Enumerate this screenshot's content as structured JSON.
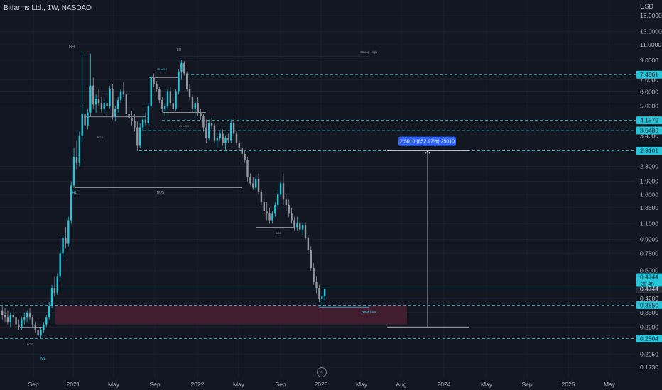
{
  "header": {
    "symbol": "Bitfarms Ltd., 1W, NASDAQ",
    "currency": "USD"
  },
  "colors": {
    "background": "#131722",
    "up": "#26c6da",
    "down": "#9598a1",
    "dashed_level": "#26c6da",
    "label_bg": "#26c6da",
    "zone": "#4a1f33",
    "measure_label": "#2962ff",
    "annotation": "#b2b5be"
  },
  "chart_data": {
    "type": "candlestick",
    "title": "Bitfarms Ltd., 1W, NASDAQ",
    "y_scale": "log",
    "ylim": [
      0.16,
      18.0
    ],
    "y_ticks": [
      "16.0000",
      "13.0000",
      "11.0000",
      "9.0000",
      "7.0000",
      "6.0000",
      "5.0000",
      "2.3000",
      "1.9000",
      "1.6000",
      "1.3500",
      "1.1000",
      "0.9000",
      "0.7500",
      "0.6000",
      "0.4200",
      "0.3500",
      "0.2900",
      "0.2050",
      "0.1730"
    ],
    "x_ticks": [
      "Sep",
      "2021",
      "May",
      "Sep",
      "2022",
      "May",
      "Sep",
      "2023",
      "May",
      "Aug",
      "2024",
      "May",
      "Sep",
      "2025",
      "May"
    ],
    "price_labels": [
      {
        "text": "7.4861",
        "value": 7.4861
      },
      {
        "text": "4.1579",
        "value": 4.1579
      },
      {
        "text": "3.6486",
        "value": 3.6486
      },
      {
        "text": "2.8101",
        "value": 2.8101
      },
      {
        "text": "0.4744",
        "value": 0.4744
      },
      {
        "text": "0.3850",
        "value": 0.385
      },
      {
        "text": "0.2504",
        "value": 0.2504
      }
    ],
    "current_price": {
      "price": "0.4744",
      "countdown": "2d 4h"
    },
    "partially_covered_tick": "3.4000",
    "horizontal_levels": [
      7.4861,
      4.1579,
      3.6486,
      2.8101,
      0.385,
      0.2504
    ],
    "annotations": [
      "HH",
      "LH",
      "ML",
      "HL",
      "BOS",
      "BOS",
      "BOS",
      "BOS",
      "CHoCH",
      "CHoCH",
      "Strong High",
      "Weak Low"
    ],
    "measure_label": "2.5010 (852.97%) 25010",
    "demand_zone": {
      "from_price": 0.3,
      "to_price": 0.385
    },
    "candles": [
      [
        0.36,
        0.38,
        0.32,
        0.34
      ],
      [
        0.34,
        0.37,
        0.31,
        0.33
      ],
      [
        0.33,
        0.36,
        0.3,
        0.31
      ],
      [
        0.31,
        0.35,
        0.29,
        0.34
      ],
      [
        0.34,
        0.37,
        0.32,
        0.33
      ],
      [
        0.33,
        0.34,
        0.29,
        0.3
      ],
      [
        0.3,
        0.32,
        0.28,
        0.29
      ],
      [
        0.29,
        0.33,
        0.28,
        0.32
      ],
      [
        0.32,
        0.35,
        0.3,
        0.33
      ],
      [
        0.33,
        0.36,
        0.31,
        0.35
      ],
      [
        0.35,
        0.37,
        0.32,
        0.33
      ],
      [
        0.33,
        0.34,
        0.29,
        0.3
      ],
      [
        0.3,
        0.31,
        0.27,
        0.28
      ],
      [
        0.28,
        0.29,
        0.255,
        0.26
      ],
      [
        0.26,
        0.29,
        0.25,
        0.28
      ],
      [
        0.28,
        0.31,
        0.27,
        0.3
      ],
      [
        0.3,
        0.34,
        0.29,
        0.33
      ],
      [
        0.33,
        0.4,
        0.32,
        0.38
      ],
      [
        0.38,
        0.5,
        0.37,
        0.48
      ],
      [
        0.48,
        0.56,
        0.43,
        0.45
      ],
      [
        0.45,
        0.58,
        0.44,
        0.56
      ],
      [
        0.56,
        0.8,
        0.53,
        0.75
      ],
      [
        0.75,
        0.95,
        0.7,
        0.92
      ],
      [
        0.92,
        1.05,
        0.8,
        0.85
      ],
      [
        0.85,
        1.2,
        0.82,
        1.15
      ],
      [
        1.15,
        1.9,
        1.1,
        1.8
      ],
      [
        1.8,
        2.9,
        1.75,
        2.6
      ],
      [
        2.6,
        3.2,
        2.2,
        2.4
      ],
      [
        2.4,
        3.6,
        2.3,
        3.4
      ],
      [
        3.4,
        10.0,
        3.2,
        4.5
      ],
      [
        4.5,
        5.2,
        3.6,
        3.9
      ],
      [
        3.9,
        4.8,
        3.7,
        4.6
      ],
      [
        4.6,
        9.8,
        4.4,
        6.5
      ],
      [
        6.5,
        7.2,
        4.8,
        5.1
      ],
      [
        5.1,
        5.8,
        4.6,
        5.5
      ],
      [
        5.5,
        6.2,
        5.0,
        5.2
      ],
      [
        5.2,
        5.6,
        4.6,
        4.8
      ],
      [
        4.8,
        5.4,
        4.5,
        5.2
      ],
      [
        5.2,
        5.8,
        4.9,
        5.0
      ],
      [
        5.0,
        6.5,
        4.8,
        6.2
      ],
      [
        6.2,
        6.6,
        4.2,
        4.4
      ],
      [
        4.4,
        5.0,
        4.1,
        4.8
      ],
      [
        4.8,
        5.6,
        4.6,
        5.4
      ],
      [
        5.4,
        6.2,
        5.2,
        6.0
      ],
      [
        6.0,
        6.8,
        5.6,
        5.8
      ],
      [
        5.8,
        6.0,
        4.3,
        4.5
      ],
      [
        4.5,
        4.9,
        4.1,
        4.3
      ],
      [
        4.3,
        4.7,
        3.9,
        4.1
      ],
      [
        4.1,
        4.5,
        3.6,
        3.8
      ],
      [
        3.8,
        4.1,
        2.8,
        3.0
      ],
      [
        3.0,
        4.0,
        2.9,
        3.8
      ],
      [
        3.8,
        4.4,
        3.6,
        4.2
      ],
      [
        4.2,
        4.6,
        3.9,
        4.0
      ],
      [
        4.0,
        5.2,
        3.9,
        5.0
      ],
      [
        5.0,
        7.4,
        4.8,
        7.2
      ],
      [
        7.2,
        7.6,
        6.4,
        6.6
      ],
      [
        6.6,
        6.9,
        6.0,
        6.2
      ],
      [
        6.2,
        6.4,
        5.2,
        5.4
      ],
      [
        5.4,
        5.6,
        4.6,
        4.8
      ],
      [
        4.8,
        5.2,
        4.4,
        5.0
      ],
      [
        5.0,
        6.2,
        4.8,
        6.0
      ],
      [
        6.0,
        6.4,
        5.0,
        5.2
      ],
      [
        5.2,
        5.4,
        4.6,
        4.8
      ],
      [
        4.8,
        6.2,
        4.7,
        6.0
      ],
      [
        6.0,
        8.0,
        5.8,
        7.8
      ],
      [
        7.8,
        9.1,
        7.0,
        8.7
      ],
      [
        8.7,
        8.9,
        7.4,
        7.6
      ],
      [
        7.6,
        7.8,
        6.0,
        6.2
      ],
      [
        6.2,
        6.6,
        5.4,
        5.6
      ],
      [
        5.6,
        5.8,
        4.6,
        4.8
      ],
      [
        4.8,
        5.4,
        4.4,
        5.2
      ],
      [
        5.2,
        5.6,
        4.4,
        4.6
      ],
      [
        4.6,
        4.8,
        4.2,
        4.4
      ],
      [
        4.4,
        4.5,
        3.6,
        3.8
      ],
      [
        3.8,
        4.2,
        3.1,
        3.3
      ],
      [
        3.3,
        4.2,
        3.2,
        4.0
      ],
      [
        4.0,
        4.3,
        3.7,
        3.9
      ],
      [
        3.9,
        4.0,
        3.1,
        3.2
      ],
      [
        3.2,
        3.4,
        2.9,
        3.3
      ],
      [
        3.3,
        3.6,
        3.2,
        3.5
      ],
      [
        3.5,
        3.7,
        3.0,
        3.1
      ],
      [
        3.1,
        3.4,
        2.8,
        3.3
      ],
      [
        3.3,
        3.5,
        3.1,
        3.2
      ],
      [
        3.2,
        4.2,
        3.1,
        4.0
      ],
      [
        4.0,
        4.3,
        3.4,
        3.5
      ],
      [
        3.5,
        3.6,
        3.0,
        3.1
      ],
      [
        3.1,
        3.2,
        2.8,
        2.9
      ],
      [
        2.9,
        3.0,
        2.6,
        2.7
      ],
      [
        2.7,
        2.8,
        2.4,
        2.5
      ],
      [
        2.5,
        2.6,
        1.9,
        2.0
      ],
      [
        2.0,
        2.1,
        1.8,
        1.85
      ],
      [
        1.85,
        2.0,
        1.7,
        1.75
      ],
      [
        1.75,
        2.0,
        1.7,
        1.95
      ],
      [
        1.95,
        2.1,
        1.6,
        1.65
      ],
      [
        1.65,
        1.7,
        1.4,
        1.45
      ],
      [
        1.45,
        1.55,
        1.2,
        1.3
      ],
      [
        1.3,
        1.45,
        1.15,
        1.25
      ],
      [
        1.25,
        1.35,
        1.1,
        1.15
      ],
      [
        1.15,
        1.3,
        1.1,
        1.25
      ],
      [
        1.25,
        1.45,
        1.2,
        1.4
      ],
      [
        1.4,
        1.7,
        1.35,
        1.6
      ],
      [
        1.6,
        1.9,
        1.55,
        1.85
      ],
      [
        1.85,
        2.1,
        1.4,
        1.5
      ],
      [
        1.5,
        1.6,
        1.3,
        1.4
      ],
      [
        1.4,
        1.5,
        1.2,
        1.25
      ],
      [
        1.25,
        1.35,
        1.1,
        1.15
      ],
      [
        1.15,
        1.2,
        1.0,
        1.05
      ],
      [
        1.05,
        1.2,
        1.0,
        1.1
      ],
      [
        1.1,
        1.15,
        0.98,
        1.02
      ],
      [
        1.02,
        1.12,
        0.95,
        1.08
      ],
      [
        1.08,
        1.12,
        0.9,
        0.92
      ],
      [
        0.92,
        0.95,
        0.75,
        0.78
      ],
      [
        0.78,
        0.82,
        0.6,
        0.62
      ],
      [
        0.62,
        0.66,
        0.5,
        0.52
      ],
      [
        0.52,
        0.56,
        0.45,
        0.48
      ],
      [
        0.48,
        0.5,
        0.4,
        0.42
      ],
      [
        0.42,
        0.45,
        0.38,
        0.43
      ],
      [
        0.43,
        0.47,
        0.41,
        0.4744
      ]
    ]
  }
}
